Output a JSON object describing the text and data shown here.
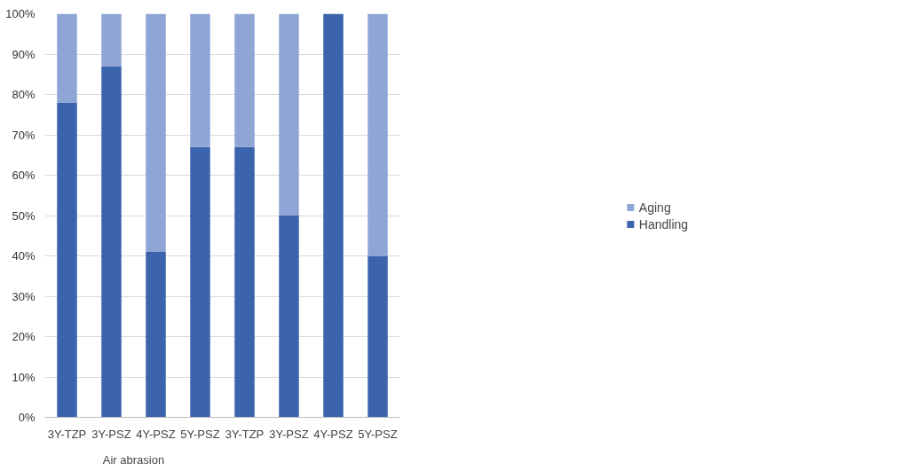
{
  "chart_data": {
    "type": "bar",
    "stacked": true,
    "categories": [
      "3Y-TZP",
      "3Y-PSZ",
      "4Y-PSZ",
      "5Y-PSZ",
      "3Y-TZP",
      "3Y-PSZ",
      "4Y-PSZ",
      "5Y-PSZ"
    ],
    "series": [
      {
        "name": "Handling",
        "color": "#3b64ad",
        "values": [
          78,
          87,
          41,
          67,
          67,
          50,
          100,
          40
        ]
      },
      {
        "name": "Aging",
        "color": "#8fa5d6",
        "values": [
          22,
          13,
          59,
          33,
          33,
          50,
          0,
          60
        ]
      }
    ],
    "ylim": [
      0,
      100
    ],
    "yticks": [
      {
        "value": 0,
        "label": "0%"
      },
      {
        "value": 10,
        "label": "10%"
      },
      {
        "value": 20,
        "label": "20%"
      },
      {
        "value": 30,
        "label": "30%"
      },
      {
        "value": 40,
        "label": "40%"
      },
      {
        "value": 50,
        "label": "50%"
      },
      {
        "value": 60,
        "label": "60%"
      },
      {
        "value": 70,
        "label": "70%"
      },
      {
        "value": 80,
        "label": "80%"
      },
      {
        "value": 90,
        "label": "90%"
      },
      {
        "value": 100,
        "label": "100%"
      }
    ],
    "grid": "y",
    "legend": "right",
    "annotations": [
      "Air abrasion"
    ]
  }
}
